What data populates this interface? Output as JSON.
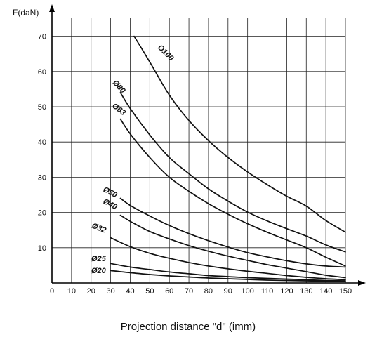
{
  "chart_data": {
    "type": "line",
    "ylabel": "F(daN)",
    "xlabel": "Projection distance \"d\" (imm)",
    "xlim": [
      0,
      150
    ],
    "ylim": [
      0,
      70
    ],
    "x_ticks": [
      0,
      10,
      20,
      30,
      40,
      50,
      60,
      70,
      80,
      90,
      100,
      110,
      120,
      130,
      140,
      150
    ],
    "y_ticks": [
      10,
      20,
      30,
      40,
      50,
      60,
      70
    ],
    "grid": true,
    "series": [
      {
        "name": "Ø100",
        "x": [
          42,
          50,
          60,
          70,
          80,
          90,
          100,
          110,
          120,
          130,
          140,
          150
        ],
        "y": [
          70,
          62.7,
          53.3,
          46.1,
          40.4,
          35.6,
          31.5,
          27.9,
          24.6,
          21.8,
          17.7,
          14.4
        ]
      },
      {
        "name": "Ø80",
        "x": [
          35,
          40,
          50,
          60,
          70,
          80,
          90,
          100,
          110,
          120,
          130,
          140,
          150
        ],
        "y": [
          54,
          49.5,
          42,
          35.6,
          31,
          26.7,
          23.2,
          20.1,
          17.6,
          15.4,
          13.3,
          10.8,
          8.8
        ]
      },
      {
        "name": "Ø63",
        "x": [
          35,
          40,
          50,
          60,
          70,
          80,
          90,
          100,
          110,
          120,
          130,
          140,
          150
        ],
        "y": [
          46.5,
          42.3,
          35.6,
          30,
          26,
          22.5,
          19.5,
          16.8,
          14.4,
          12.2,
          10,
          7.3,
          4.8
        ]
      },
      {
        "name": "Ø50",
        "x": [
          35,
          40,
          50,
          60,
          70,
          80,
          90,
          100,
          110,
          120,
          130,
          140,
          150
        ],
        "y": [
          24,
          22,
          19,
          16.3,
          14,
          12,
          10.2,
          8.6,
          7.4,
          6.3,
          5.4,
          4.8,
          4.5
        ]
      },
      {
        "name": "Ø40",
        "x": [
          35,
          40,
          50,
          60,
          70,
          80,
          90,
          100,
          110,
          120,
          130,
          140,
          150
        ],
        "y": [
          19.2,
          17.5,
          14.6,
          12.5,
          10.6,
          9,
          7.6,
          6.4,
          5.2,
          4.2,
          3.2,
          2.2,
          1.5
        ]
      },
      {
        "name": "Ø32",
        "x": [
          30,
          40,
          50,
          60,
          70,
          80,
          90,
          100,
          110,
          120,
          130,
          140,
          150
        ],
        "y": [
          12.8,
          10.3,
          8.4,
          7,
          5.8,
          4.8,
          4,
          3.3,
          2.7,
          2.1,
          1.6,
          1.2,
          0.9
        ]
      },
      {
        "name": "Ø25",
        "x": [
          30,
          40,
          50,
          60,
          70,
          80,
          90,
          100,
          110,
          120,
          130,
          140,
          150
        ],
        "y": [
          5.5,
          4.5,
          3.8,
          3.1,
          2.6,
          2.1,
          1.8,
          1.5,
          1.3,
          1.1,
          0.9,
          0.7,
          0.6
        ]
      },
      {
        "name": "Ø20",
        "x": [
          30,
          40,
          50,
          60,
          70,
          80,
          90,
          100,
          110,
          120,
          130,
          140,
          150
        ],
        "y": [
          3.5,
          2.9,
          2.4,
          2,
          1.7,
          1.4,
          1.2,
          1,
          0.8,
          0.7,
          0.6,
          0.5,
          0.4
        ]
      }
    ]
  }
}
